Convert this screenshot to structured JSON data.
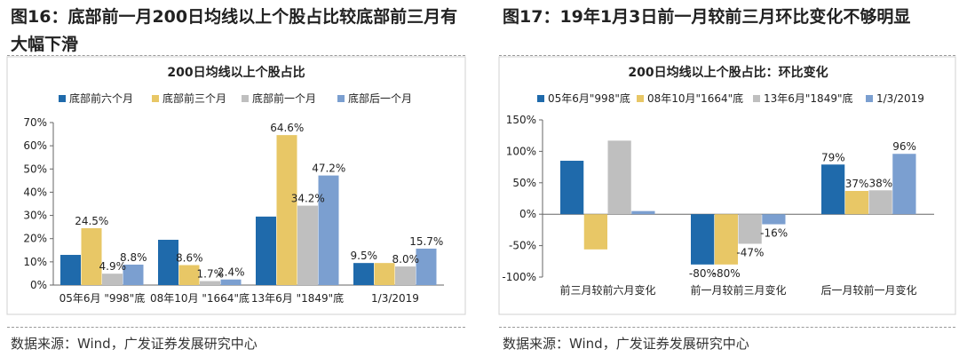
{
  "colors": {
    "blue": "#1f6aab",
    "yellow": "#e8c766",
    "gray": "#bfbfbf",
    "lightblue": "#7b9fd0"
  },
  "figure1": {
    "title": "图16：底部前一月200日均线以上个股占比较底部前三月有大幅下滑",
    "source": "数据来源：Wind，广发证券发展研究中心"
  },
  "figure2": {
    "title": "图17：19年1月3日前一月较前三月环比变化不够明显",
    "source": "数据来源：Wind，广发证券发展研究中心"
  },
  "chart_data": [
    {
      "type": "bar",
      "title": "200日均线以上个股占比",
      "categories": [
        "05年6月 \"998\"底",
        "08年10月 \"1664\"底",
        "13年6月 \"1849\"底",
        "1/3/2019"
      ],
      "series": [
        {
          "name": "底部前六个月",
          "values": [
            13,
            19.5,
            29.5,
            9.5
          ]
        },
        {
          "name": "底部前三个月",
          "values": [
            24.5,
            8.6,
            64.6,
            9.5
          ]
        },
        {
          "name": "底部前一个月",
          "values": [
            4.9,
            1.7,
            34.2,
            8.0
          ]
        },
        {
          "name": "底部后一个月",
          "values": [
            8.8,
            2.4,
            47.2,
            15.7
          ]
        }
      ],
      "data_labels": [
        {
          "category": 0,
          "series": 1,
          "text": "24.5%"
        },
        {
          "category": 0,
          "series": 2,
          "text": "4.9%"
        },
        {
          "category": 0,
          "series": 3,
          "text": "8.8%"
        },
        {
          "category": 1,
          "series": 1,
          "text": "8.6%"
        },
        {
          "category": 1,
          "series": 2,
          "text": "1.7%"
        },
        {
          "category": 1,
          "series": 3,
          "text": "2.4%"
        },
        {
          "category": 2,
          "series": 1,
          "text": "64.6%"
        },
        {
          "category": 2,
          "series": 2,
          "text": "34.2%"
        },
        {
          "category": 2,
          "series": 3,
          "text": "47.2%"
        },
        {
          "category": 3,
          "series": 0,
          "text": "9.5%"
        },
        {
          "category": 3,
          "series": 2,
          "text": "8.0%"
        },
        {
          "category": 3,
          "series": 3,
          "text": "15.7%"
        }
      ],
      "ylim": [
        0,
        70
      ],
      "yticks": [
        0,
        10,
        20,
        30,
        40,
        50,
        60,
        70
      ],
      "ytick_labels": [
        "0%",
        "10%",
        "20%",
        "30%",
        "40%",
        "50%",
        "60%",
        "70%"
      ],
      "legend": "top"
    },
    {
      "type": "bar",
      "title": "200日均线以上个股占比：环比变化",
      "categories": [
        "前三月较前六月变化",
        "前一月较前三月变化",
        "后一月较前一月变化"
      ],
      "series": [
        {
          "name": "05年6月\"998\"底",
          "values": [
            85,
            -80,
            79
          ]
        },
        {
          "name": "08年10月\"1664\"底",
          "values": [
            -56,
            -80,
            37
          ]
        },
        {
          "name": "13年6月\"1849\"底",
          "values": [
            117,
            -47,
            38
          ]
        },
        {
          "name": "1/3/2019",
          "values": [
            5,
            -16,
            96
          ]
        }
      ],
      "data_labels": [
        {
          "category": 1,
          "series": 0,
          "text": "-80%"
        },
        {
          "category": 1,
          "series": 1,
          "text": "-80%"
        },
        {
          "category": 1,
          "series": 2,
          "text": "-47%"
        },
        {
          "category": 1,
          "series": 3,
          "text": "-16%"
        },
        {
          "category": 2,
          "series": 0,
          "text": "79%"
        },
        {
          "category": 2,
          "series": 1,
          "text": "37%"
        },
        {
          "category": 2,
          "series": 2,
          "text": "38%"
        },
        {
          "category": 2,
          "series": 3,
          "text": "96%"
        }
      ],
      "ylim": [
        -100,
        150
      ],
      "yticks": [
        -100,
        -50,
        0,
        50,
        100,
        150
      ],
      "ytick_labels": [
        "-100%",
        "-50%",
        "0%",
        "50%",
        "100%",
        "150%"
      ],
      "legend": "top"
    }
  ]
}
